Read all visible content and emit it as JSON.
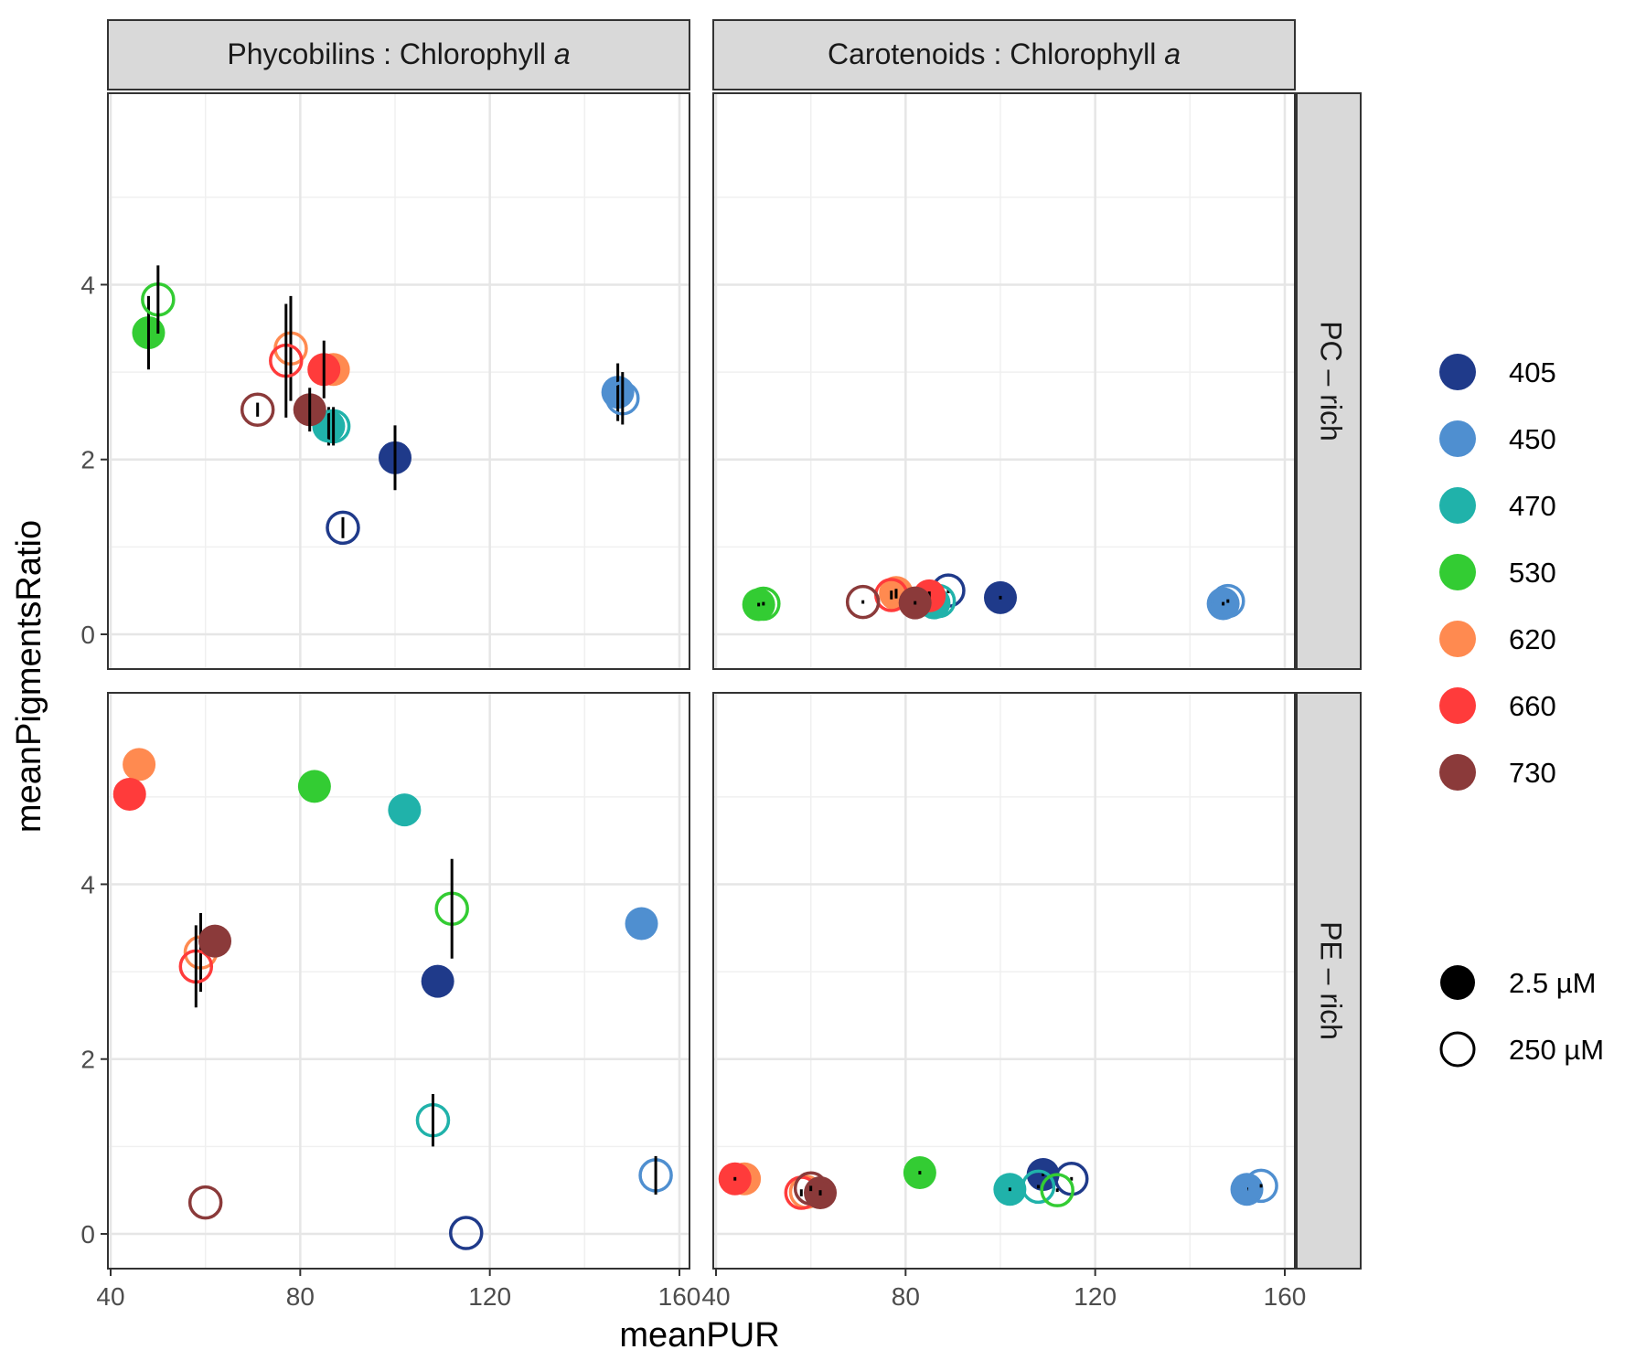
{
  "chart_data": {
    "type": "scatter",
    "xlabel": "meanPUR",
    "ylabel": "meanPigmentsRatio",
    "xlim": [
      40,
      160
    ],
    "ylim": [
      0,
      5.5
    ],
    "xticks": [
      40,
      80,
      120,
      160
    ],
    "xtick_labels": [
      "40",
      "80",
      "120",
      "160"
    ],
    "yticks": [
      0,
      2,
      4
    ],
    "ytick_labels": [
      "0",
      "2",
      "4"
    ],
    "grid": true,
    "legend_position": "right",
    "columns": [
      {
        "id": "pb",
        "label_main": "Phycobilins : Chlorophyll ",
        "label_italic": "a"
      },
      {
        "id": "car",
        "label_main": "Carotenoids : Chlorophyll ",
        "label_italic": "a"
      }
    ],
    "rows": [
      {
        "id": "pc",
        "label": "PC – rich"
      },
      {
        "id": "pe",
        "label": "PE – rich"
      }
    ],
    "wavelength_legend": [
      {
        "label": "405",
        "color": "#1f3a8a"
      },
      {
        "label": "450",
        "color": "#4f8fd0"
      },
      {
        "label": "470",
        "color": "#20b2aa"
      },
      {
        "label": "530",
        "color": "#33cc33"
      },
      {
        "label": "620",
        "color": "#ff8a50"
      },
      {
        "label": "660",
        "color": "#ff3b3b"
      },
      {
        "label": "730",
        "color": "#8b3a3a"
      }
    ],
    "shape_legend": [
      {
        "label": " 2.5 µM",
        "filled": true
      },
      {
        "label": "250 µM",
        "filled": false
      }
    ],
    "panels": [
      {
        "col": "pb",
        "row": "pc",
        "points": [
          {
            "wl": "405",
            "filled": true,
            "x": 100,
            "y": 2.02,
            "err": 0.37
          },
          {
            "wl": "405",
            "filled": false,
            "x": 89,
            "y": 1.22,
            "err": 0.12
          },
          {
            "wl": "450",
            "filled": true,
            "x": 147,
            "y": 2.77,
            "err": 0.33
          },
          {
            "wl": "450",
            "filled": false,
            "x": 148,
            "y": 2.7,
            "err": 0.3
          },
          {
            "wl": "470",
            "filled": true,
            "x": 86,
            "y": 2.38,
            "err": 0.22
          },
          {
            "wl": "470",
            "filled": false,
            "x": 87,
            "y": 2.38,
            "err": 0.22
          },
          {
            "wl": "530",
            "filled": true,
            "x": 48,
            "y": 3.45,
            "err": 0.42
          },
          {
            "wl": "530",
            "filled": false,
            "x": 50,
            "y": 3.83,
            "err": 0.39
          },
          {
            "wl": "620",
            "filled": true,
            "x": 87,
            "y": 3.03,
            "err": 0.05
          },
          {
            "wl": "620",
            "filled": false,
            "x": 78,
            "y": 3.27,
            "err": 0.6
          },
          {
            "wl": "660",
            "filled": true,
            "x": 85,
            "y": 3.03,
            "err": 0.33
          },
          {
            "wl": "660",
            "filled": false,
            "x": 77,
            "y": 3.13,
            "err": 0.65
          },
          {
            "wl": "730",
            "filled": true,
            "x": 82,
            "y": 2.57,
            "err": 0.25
          },
          {
            "wl": "730",
            "filled": false,
            "x": 71,
            "y": 2.57,
            "err": 0.08
          }
        ]
      },
      {
        "col": "car",
        "row": "pc",
        "points": [
          {
            "wl": "405",
            "filled": true,
            "x": 100,
            "y": 0.42,
            "err": 0.02
          },
          {
            "wl": "405",
            "filled": false,
            "x": 89,
            "y": 0.5,
            "err": 0.03
          },
          {
            "wl": "450",
            "filled": true,
            "x": 147,
            "y": 0.35,
            "err": 0.02
          },
          {
            "wl": "450",
            "filled": false,
            "x": 148,
            "y": 0.38,
            "err": 0.02
          },
          {
            "wl": "470",
            "filled": true,
            "x": 86,
            "y": 0.36,
            "err": 0.02
          },
          {
            "wl": "470",
            "filled": false,
            "x": 87,
            "y": 0.38,
            "err": 0.02
          },
          {
            "wl": "530",
            "filled": true,
            "x": 49,
            "y": 0.34,
            "err": 0.02
          },
          {
            "wl": "530",
            "filled": false,
            "x": 50,
            "y": 0.35,
            "err": 0.02
          },
          {
            "wl": "620",
            "filled": true,
            "x": 78,
            "y": 0.46,
            "err": 0.05
          },
          {
            "wl": "620",
            "filled": false,
            "x": 78,
            "y": 0.47,
            "err": 0.05
          },
          {
            "wl": "660",
            "filled": true,
            "x": 85,
            "y": 0.44,
            "err": 0.05
          },
          {
            "wl": "660",
            "filled": false,
            "x": 77,
            "y": 0.45,
            "err": 0.05
          },
          {
            "wl": "730",
            "filled": true,
            "x": 82,
            "y": 0.36,
            "err": 0.02
          },
          {
            "wl": "730",
            "filled": false,
            "x": 71,
            "y": 0.37,
            "err": 0.02
          }
        ]
      },
      {
        "col": "pb",
        "row": "pe",
        "points": [
          {
            "wl": "405",
            "filled": true,
            "x": 109,
            "y": 2.89,
            "err": 0
          },
          {
            "wl": "405",
            "filled": false,
            "x": 115,
            "y": 0.01,
            "err": 0
          },
          {
            "wl": "450",
            "filled": true,
            "x": 152,
            "y": 3.55,
            "err": 0
          },
          {
            "wl": "450",
            "filled": false,
            "x": 155,
            "y": 0.67,
            "err": 0.22
          },
          {
            "wl": "470",
            "filled": true,
            "x": 102,
            "y": 4.85,
            "err": 0
          },
          {
            "wl": "470",
            "filled": false,
            "x": 108,
            "y": 1.3,
            "err": 0.3
          },
          {
            "wl": "530",
            "filled": true,
            "x": 83,
            "y": 5.12,
            "err": 0
          },
          {
            "wl": "530",
            "filled": false,
            "x": 112,
            "y": 3.72,
            "err": 0.57
          },
          {
            "wl": "620",
            "filled": true,
            "x": 46,
            "y": 5.37,
            "err": 0
          },
          {
            "wl": "620",
            "filled": false,
            "x": 59,
            "y": 3.22,
            "err": 0.45
          },
          {
            "wl": "660",
            "filled": true,
            "x": 44,
            "y": 5.03,
            "err": 0
          },
          {
            "wl": "660",
            "filled": false,
            "x": 58,
            "y": 3.06,
            "err": 0.47
          },
          {
            "wl": "730",
            "filled": true,
            "x": 62,
            "y": 3.35,
            "err": 0
          },
          {
            "wl": "730",
            "filled": false,
            "x": 60,
            "y": 0.36,
            "err": 0
          }
        ]
      },
      {
        "col": "car",
        "row": "pe",
        "points": [
          {
            "wl": "405",
            "filled": true,
            "x": 109,
            "y": 0.68,
            "err": 0.02
          },
          {
            "wl": "405",
            "filled": false,
            "x": 115,
            "y": 0.63,
            "err": 0.02
          },
          {
            "wl": "450",
            "filled": true,
            "x": 152,
            "y": 0.51,
            "err": 0.02
          },
          {
            "wl": "450",
            "filled": false,
            "x": 155,
            "y": 0.55,
            "err": 0.02
          },
          {
            "wl": "470",
            "filled": true,
            "x": 102,
            "y": 0.51,
            "err": 0.02
          },
          {
            "wl": "470",
            "filled": false,
            "x": 108,
            "y": 0.54,
            "err": 0.02
          },
          {
            "wl": "530",
            "filled": true,
            "x": 83,
            "y": 0.7,
            "err": 0.02
          },
          {
            "wl": "530",
            "filled": false,
            "x": 112,
            "y": 0.5,
            "err": 0.02
          },
          {
            "wl": "620",
            "filled": true,
            "x": 46,
            "y": 0.63,
            "err": 0.02
          },
          {
            "wl": "620",
            "filled": false,
            "x": 59,
            "y": 0.48,
            "err": 0.04
          },
          {
            "wl": "660",
            "filled": true,
            "x": 44,
            "y": 0.63,
            "err": 0.02
          },
          {
            "wl": "660",
            "filled": false,
            "x": 58,
            "y": 0.47,
            "err": 0.04
          },
          {
            "wl": "730",
            "filled": true,
            "x": 62,
            "y": 0.47,
            "err": 0.03
          },
          {
            "wl": "730",
            "filled": false,
            "x": 60,
            "y": 0.52,
            "err": 0.03
          }
        ]
      }
    ]
  }
}
